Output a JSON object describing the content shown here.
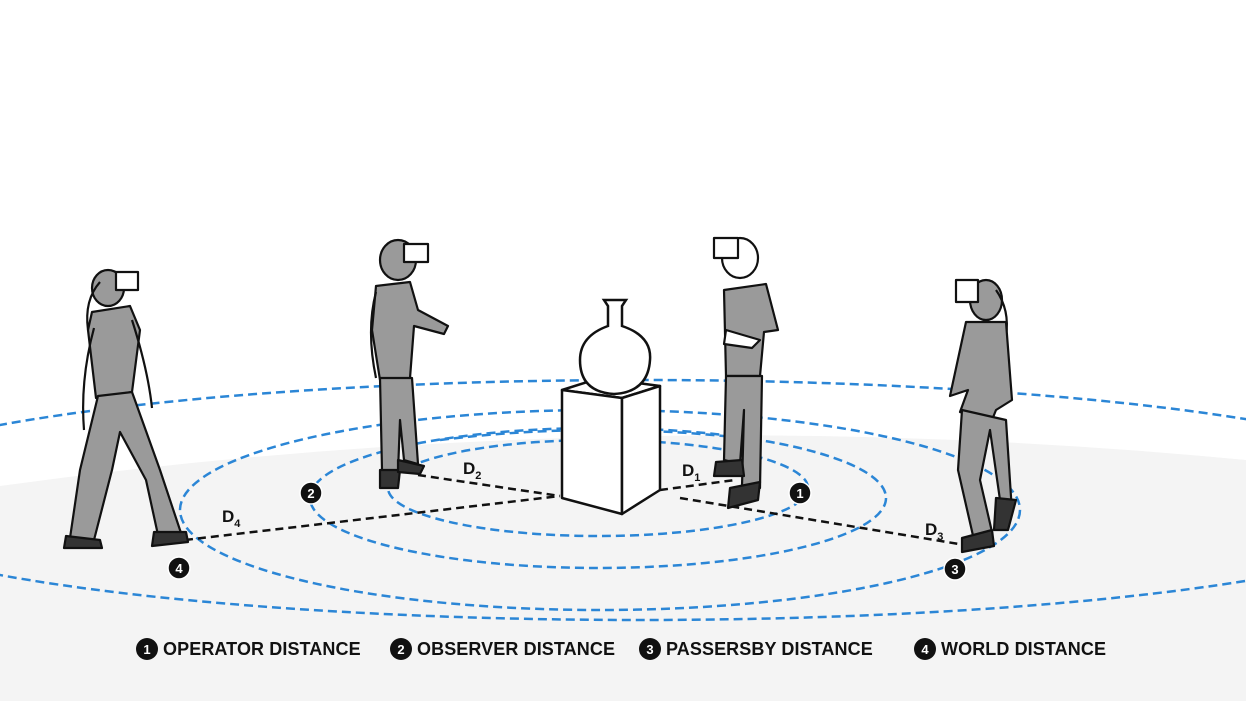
{
  "distances": [
    {
      "number": "1",
      "label": "OPERATOR DISTANCE",
      "short": "D",
      "sub": "1"
    },
    {
      "number": "2",
      "label": "OBSERVER DISTANCE",
      "short": "D",
      "sub": "2"
    },
    {
      "number": "3",
      "label": "PASSERSBY DISTANCE",
      "short": "D",
      "sub": "3"
    },
    {
      "number": "4",
      "label": "WORLD DISTANCE",
      "short": "D",
      "sub": "4"
    }
  ],
  "colors": {
    "ring": "#2b86d6",
    "floor": "#f4f4f4",
    "figure": "#9a9a9a",
    "outline": "#111111"
  }
}
